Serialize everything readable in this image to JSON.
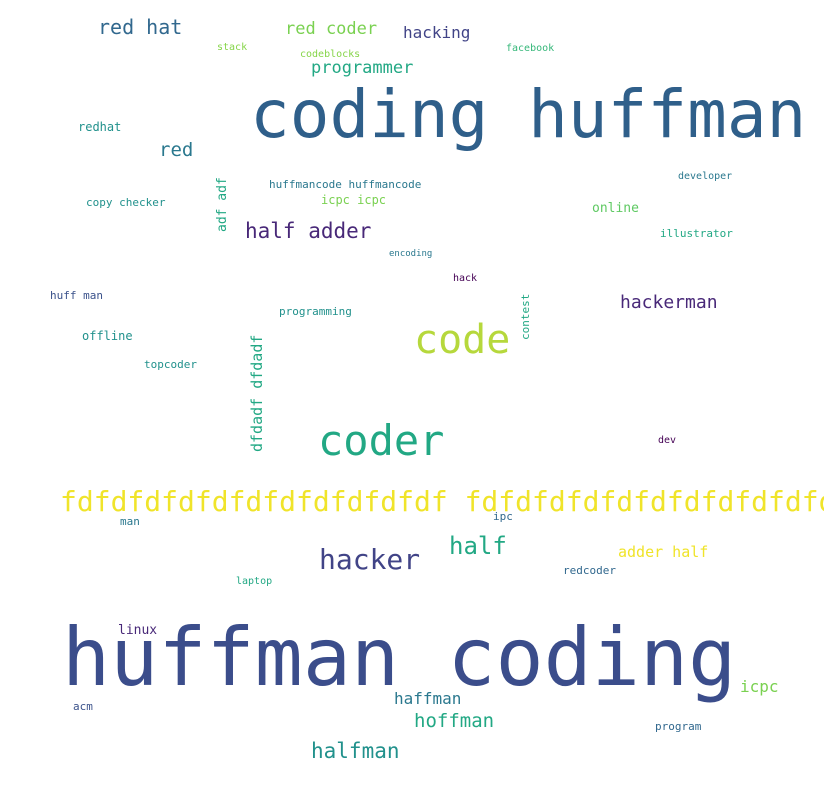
{
  "words": [
    {
      "text": "coding huffman",
      "color": "#2f5f8a"
    },
    {
      "text": "huffman coding",
      "color": "#3b4d8b"
    },
    {
      "text": "code",
      "color": "#b6d83c"
    },
    {
      "text": "coder",
      "color": "#22a884"
    },
    {
      "text": "fdfdfdfdfdfdfdfdfdfdfdf fdfdfdfdfdfdfdfdfdfdfdf",
      "color": "#f0e42a"
    },
    {
      "text": "hacker",
      "color": "#414487"
    },
    {
      "text": "half",
      "color": "#22a884"
    },
    {
      "text": "half adder",
      "color": "#482878"
    },
    {
      "text": "hackerman",
      "color": "#482878"
    },
    {
      "text": "red hat",
      "color": "#31688e"
    },
    {
      "text": "red coder",
      "color": "#7ad151"
    },
    {
      "text": "hacking",
      "color": "#414487"
    },
    {
      "text": "programmer",
      "color": "#22a884"
    },
    {
      "text": "red",
      "color": "#2a788e"
    },
    {
      "text": "hoffman",
      "color": "#22a884"
    },
    {
      "text": "halfman",
      "color": "#21918c"
    },
    {
      "text": "haffman",
      "color": "#2a788e"
    },
    {
      "text": "icpc",
      "color": "#7ad151"
    },
    {
      "text": "adder half",
      "color": "#f0e42a"
    },
    {
      "text": "online",
      "color": "#5ec962"
    },
    {
      "text": "linux",
      "color": "#482878"
    },
    {
      "text": "stack",
      "color": "#86d549"
    },
    {
      "text": "codeblocks",
      "color": "#86d549"
    },
    {
      "text": "facebook",
      "color": "#35b779"
    },
    {
      "text": "redhat",
      "color": "#21918c"
    },
    {
      "text": "copy checker",
      "color": "#21918c"
    },
    {
      "text": "adf adf",
      "color": "#22a884"
    },
    {
      "text": "huffmancode huffmancode",
      "color": "#2a788e"
    },
    {
      "text": "icpc icpc",
      "color": "#7ad151"
    },
    {
      "text": "developer",
      "color": "#2a788e"
    },
    {
      "text": "illustrator",
      "color": "#22a884"
    },
    {
      "text": "encoding",
      "color": "#2a788e"
    },
    {
      "text": "hack",
      "color": "#440154"
    },
    {
      "text": "huff man",
      "color": "#3b528b"
    },
    {
      "text": "programming",
      "color": "#21918c"
    },
    {
      "text": "contest",
      "color": "#22a884"
    },
    {
      "text": "offline",
      "color": "#21918c"
    },
    {
      "text": "topcoder",
      "color": "#21918c"
    },
    {
      "text": "dfdadf dfdadf",
      "color": "#22a884"
    },
    {
      "text": "dev",
      "color": "#440154"
    },
    {
      "text": "man",
      "color": "#2a788e"
    },
    {
      "text": "ipc",
      "color": "#31688e"
    },
    {
      "text": "redcoder",
      "color": "#31688e"
    },
    {
      "text": "laptop",
      "color": "#22a884"
    },
    {
      "text": "acm",
      "color": "#3b528b"
    },
    {
      "text": "program",
      "color": "#31688e"
    }
  ]
}
